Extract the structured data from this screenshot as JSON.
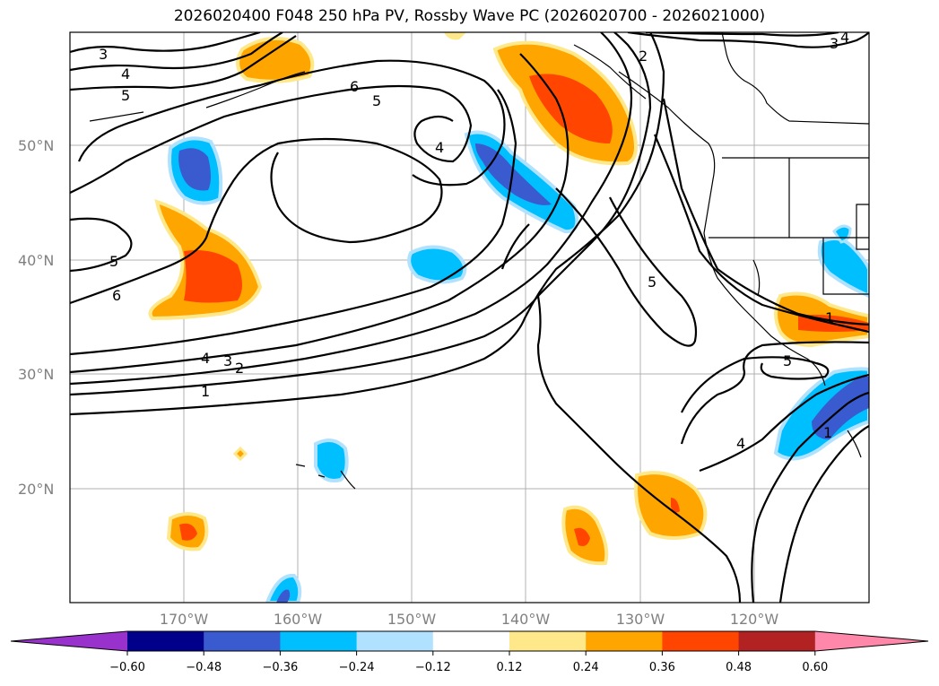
{
  "title": "2026020400 F048 250 hPa PV, Rossby Wave PC (2026020700 - 2026021000)",
  "map": {
    "lat_labels": [
      "50°N",
      "40°N",
      "30°N",
      "20°N"
    ],
    "lon_labels": [
      "170°W",
      "160°W",
      "150°W",
      "140°W",
      "130°W",
      "120°W"
    ],
    "contour_labels": [
      "3",
      "4",
      "5",
      "6",
      "5",
      "4",
      "5",
      "6",
      "4",
      "3",
      "2",
      "1",
      "2",
      "3",
      "4",
      "5",
      "5",
      "4",
      "1",
      "1"
    ]
  },
  "colorbar": {
    "ticks": [
      "−0.60",
      "−0.48",
      "−0.36",
      "−0.24",
      "−0.12",
      "0.12",
      "0.24",
      "0.36",
      "0.48",
      "0.60"
    ],
    "colors": [
      "#9932cc",
      "#00008b",
      "#3a5bd0",
      "#00bfff",
      "#b0e2ff",
      "#ffffff",
      "#ffe88a",
      "#ffa500",
      "#ff4500",
      "#b22222",
      "#ff88aa"
    ]
  }
}
